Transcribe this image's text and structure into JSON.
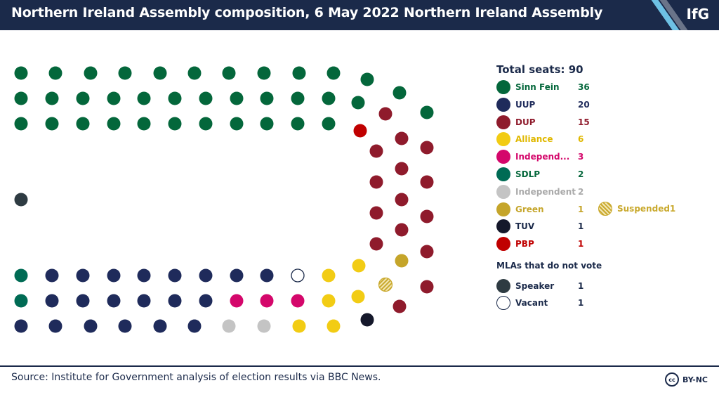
{
  "header": {
    "title": "Northern Ireland Assembly composition, 6 May 2022 Northern Ireland Assembly",
    "logo": "IfG"
  },
  "footer": {
    "source": "Source: Institute for Government analysis of election results via BBC News.",
    "license": "BY-NC",
    "license_icon": "cc"
  },
  "chart_data": {
    "type": "parliament",
    "title": "Northern Ireland Assembly composition, 6 May 2022 Northern Ireland Assembly",
    "total_label": "Total seats: 90",
    "parties": [
      {
        "name": "Sinn Fein",
        "seats": 36,
        "color": "#04673b"
      },
      {
        "name": "UUP",
        "seats": 20,
        "color": "#1f2b5b"
      },
      {
        "name": "DUP",
        "seats": 15,
        "color": "#8f1b2c"
      },
      {
        "name": "Alliance",
        "seats": 6,
        "color": "#f2cc14"
      },
      {
        "name": "Independ...",
        "seats": 3,
        "color": "#d4076b"
      },
      {
        "name": "SDLP",
        "seats": 2,
        "color": "#006b54"
      },
      {
        "name": "Independent",
        "seats": 2,
        "color": "#c4c4c4"
      },
      {
        "name": "Green",
        "seats": 1,
        "color": "#c5a52a",
        "suspended": 1
      },
      {
        "name": "TUV",
        "seats": 1,
        "color": "#15182b"
      },
      {
        "name": "PBP",
        "seats": 1,
        "color": "#c00000"
      }
    ],
    "non_voting_label": "MLAs that do not vote",
    "non_voting": [
      {
        "name": "Speaker",
        "seats": 1,
        "color": "#2e3b42"
      },
      {
        "name": "Vacant",
        "seats": 1,
        "color": "#ffffff"
      }
    ],
    "suspended_label": "Suspended",
    "suspended_count": 1,
    "suspended_color": "#c9a92d"
  }
}
